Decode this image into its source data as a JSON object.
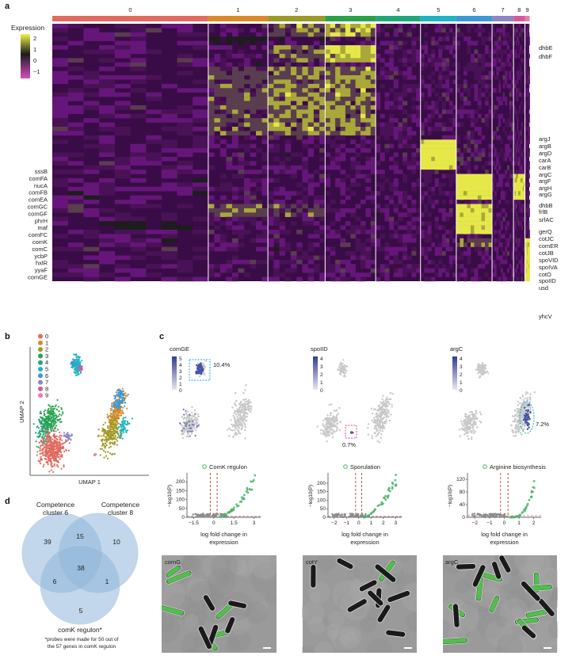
{
  "panels": {
    "a": "a",
    "b": "b",
    "c": "c",
    "d": "d"
  },
  "heatmap": {
    "legend_title": "Expression",
    "legend_ticks": [
      "2",
      "1",
      "0",
      "−1"
    ],
    "cluster_labels": [
      "0",
      "1",
      "2",
      "3",
      "4",
      "5",
      "6",
      "7",
      "8",
      "9"
    ],
    "cluster_colors": [
      "#e06b60",
      "#d98b2a",
      "#9c9a26",
      "#2aa24a",
      "#1fa77a",
      "#1fb3c4",
      "#3d98d3",
      "#8d86c4",
      "#d45aa0",
      "#e37fb3"
    ],
    "cluster_fractions": [
      0.327,
      0.125,
      0.12,
      0.106,
      0.094,
      0.075,
      0.075,
      0.045,
      0.024,
      0.01
    ],
    "left_genes": [
      "sssB",
      "comFA",
      "nucA",
      "comFB",
      "comEA",
      "comGC",
      "comGF",
      "phrH",
      "maf",
      "comFC",
      "comK",
      "comC",
      "ycbP",
      "hxlR",
      "yyaF",
      "comGE"
    ],
    "right_genes": [
      "dhbE",
      "dhbF",
      "argJ",
      "argB",
      "argD",
      "carA",
      "carB",
      "argC",
      "argF",
      "argH",
      "argG",
      "dhbB",
      "frlB",
      "srfAC",
      "gerQ",
      "cotJC",
      "comER",
      "cotJB",
      "spoVID",
      "spoIVA",
      "cotO",
      "spoIID",
      "usd",
      "yhcV"
    ]
  },
  "umap": {
    "xlabel": "UMAP 1",
    "ylabel": "UMAP 2",
    "legend": [
      "0",
      "1",
      "2",
      "3",
      "4",
      "5",
      "6",
      "7",
      "8",
      "9"
    ]
  },
  "c_panels": [
    {
      "gene": "comGE",
      "scale": [
        "5",
        "4",
        "3",
        "2",
        "1",
        "0"
      ],
      "pct": "10.4%",
      "volcano_title": "ComK regulon",
      "xticks": [
        "−1.5",
        "0",
        "1.5",
        "3"
      ],
      "yticks": [
        "200",
        "150",
        "100",
        "50",
        "0"
      ],
      "micro_label": "comG",
      "max_y": 250,
      "xmin": -2,
      "xmax": 3.5
    },
    {
      "gene": "spoIID",
      "scale": [
        "4",
        "3",
        "2",
        "1",
        "0"
      ],
      "pct": "0.7%",
      "volcano_title": "Sporulation",
      "xticks": [
        "−2",
        "−1",
        "0",
        "1",
        "2",
        "3"
      ],
      "yticks": [
        "200",
        "150",
        "100",
        "50",
        "0"
      ],
      "micro_label": "cotY",
      "max_y": 260,
      "xmin": -2.5,
      "xmax": 3.5
    },
    {
      "gene": "argC",
      "scale": [
        "4",
        "3",
        "2",
        "1",
        "0"
      ],
      "pct": "7.2%",
      "volcano_title": "Arginine biosynthesis",
      "xticks": [
        "−2",
        "−1",
        "0",
        "1",
        "2"
      ],
      "yticks": [
        "120",
        "80",
        "40",
        "0"
      ],
      "micro_label": "argC",
      "max_y": 140,
      "xmin": -2.5,
      "xmax": 2.5
    }
  ],
  "volcano_ylabel": "−log10(P)",
  "volcano_xlabel": [
    "log fold change in",
    "expression"
  ],
  "venn": {
    "set_a": [
      "Competence",
      "cluster 6"
    ],
    "set_b": [
      "Competence",
      "cluster 8"
    ],
    "set_c": "comK regulon*",
    "only_a": "39",
    "a_b": "15",
    "only_b": "10",
    "center": "38",
    "a_c": "6",
    "b_c": "1",
    "only_c": "5",
    "footnote": [
      "*probes were made for 50 out of",
      "the 57 genes in comK regulon"
    ]
  }
}
